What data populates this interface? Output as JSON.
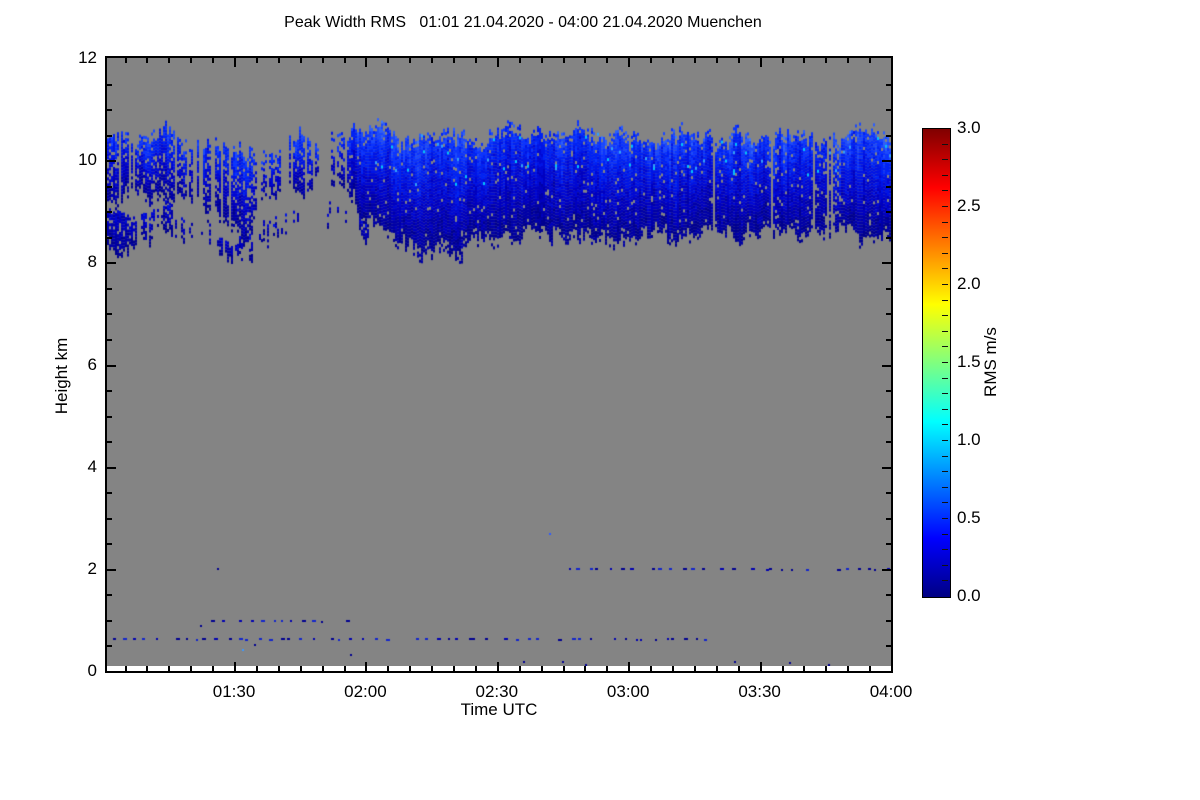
{
  "chart_data": {
    "type": "heatmap",
    "title": "Peak Width RMS   01:01 21.04.2020 - 04:00 21.04.2020 Muenchen",
    "xlabel": "Time UTC",
    "ylabel": "Height km",
    "x_axis": {
      "start": "01:01",
      "end": "04:00",
      "total_minutes": 179,
      "major_ticks": [
        {
          "minute": 29,
          "label": "01:30"
        },
        {
          "minute": 59,
          "label": "02:00"
        },
        {
          "minute": 89,
          "label": "02:30"
        },
        {
          "minute": 119,
          "label": "03:00"
        },
        {
          "minute": 149,
          "label": "03:30"
        },
        {
          "minute": 179,
          "label": "04:00"
        }
      ],
      "minor_step_minutes": 5,
      "first_minor_minute": 4
    },
    "y_axis": {
      "min": 0,
      "max": 12,
      "major_ticks": [
        0,
        2,
        4,
        6,
        8,
        10,
        12
      ],
      "minor_step": 0.5
    },
    "colorbar": {
      "label": "RMS m/s",
      "min": 0.0,
      "max": 3.0,
      "tick_labels": [
        "0.0",
        "0.5",
        "1.0",
        "1.5",
        "2.0",
        "2.5",
        "3.0"
      ],
      "tick_step": 0.5,
      "minor_tick_step": 0.1,
      "colormap": "jet",
      "gradient_stops": [
        [
          0.0,
          "#000083"
        ],
        [
          0.125,
          "#0000FF"
        ],
        [
          0.375,
          "#00FFFF"
        ],
        [
          0.625,
          "#FFFF00"
        ],
        [
          0.875,
          "#FF0000"
        ],
        [
          1.0,
          "#800000"
        ]
      ]
    },
    "nodata_color": "#848484",
    "cloud_layer": {
      "description": "cirrus-like cloud band of low RMS (~0.1-0.6 m/s) between ~8.1 and ~10.75 km; patchy before ~01:55, dense and continuous after",
      "x_step": 0.025,
      "main_band": [
        [
          10.55,
          9.1,
          0.92
        ],
        [
          10.35,
          9.35,
          0.75
        ],
        [
          10.55,
          9.3,
          0.85
        ],
        [
          10.65,
          9.15,
          0.9
        ],
        [
          10.4,
          9.35,
          0.6
        ],
        [
          10.4,
          8.95,
          0.7
        ],
        [
          10.5,
          8.75,
          0.85
        ],
        [
          10.3,
          8.45,
          0.75
        ],
        [
          10.2,
          9.3,
          0.45
        ],
        [
          10.35,
          9.45,
          0.55
        ],
        [
          10.6,
          9.4,
          0.85
        ],
        [
          10.4,
          9.7,
          0.4
        ],
        [
          10.6,
          9.6,
          0.65
        ],
        [
          10.7,
          8.95,
          0.95
        ],
        [
          10.75,
          8.55,
          1.0
        ],
        [
          10.45,
          8.35,
          1.0
        ],
        [
          10.55,
          8.1,
          1.0
        ],
        [
          10.65,
          8.25,
          1.0
        ],
        [
          10.5,
          8.2,
          1.0
        ],
        [
          10.4,
          8.45,
          1.0
        ],
        [
          10.7,
          8.5,
          1.0
        ],
        [
          10.5,
          8.45,
          1.0
        ],
        [
          10.6,
          8.55,
          1.0
        ],
        [
          10.5,
          8.6,
          1.0
        ],
        [
          10.75,
          8.5,
          1.0
        ],
        [
          10.5,
          8.45,
          1.0
        ],
        [
          10.55,
          8.35,
          1.0
        ],
        [
          10.5,
          8.35,
          1.0
        ],
        [
          10.35,
          8.5,
          1.0
        ],
        [
          10.6,
          8.45,
          1.0
        ],
        [
          10.5,
          8.55,
          0.95
        ],
        [
          10.3,
          8.6,
          0.85
        ],
        [
          10.6,
          8.5,
          1.0
        ],
        [
          10.55,
          8.45,
          0.95
        ],
        [
          10.4,
          8.6,
          0.7
        ],
        [
          10.55,
          8.5,
          0.95
        ],
        [
          10.5,
          8.6,
          0.85
        ],
        [
          10.45,
          8.65,
          0.55
        ],
        [
          10.7,
          8.45,
          1.0
        ],
        [
          10.65,
          8.45,
          1.0
        ],
        [
          10.55,
          8.45,
          1.0
        ]
      ],
      "lower_band": [
        [
          9.05,
          8.3,
          0.9
        ],
        [
          8.8,
          8.15,
          0.85
        ],
        [
          9.05,
          8.45,
          0.55
        ],
        [
          9.15,
          8.6,
          0.6
        ],
        [
          8.95,
          8.55,
          0.35
        ],
        [
          8.8,
          8.3,
          0.5
        ],
        [
          8.6,
          8.1,
          0.6
        ],
        [
          8.55,
          8.05,
          0.5
        ],
        [
          8.85,
          8.45,
          0.35
        ],
        [
          8.95,
          8.65,
          0.25
        ],
        [
          9.15,
          8.8,
          0.25
        ],
        [
          9.0,
          8.85,
          0.1
        ],
        [
          9.25,
          8.9,
          0.3
        ],
        [
          8.95,
          8.6,
          0.55
        ],
        [
          8.6,
          8.5,
          0.0
        ]
      ],
      "shades": [
        "#000090",
        "#0000A8",
        "#0000C0",
        "#0008D4",
        "#0014E6",
        "#0022F4",
        "#0B33FF",
        "#1A48FF",
        "#2B5EFF",
        "#3D78FF"
      ],
      "flecks": [
        "#2FA0FF",
        "#00C3FF"
      ]
    },
    "dot_rows": [
      {
        "height_km": 0.64,
        "x_from": 0.0,
        "x_to": 0.77,
        "count": 58
      },
      {
        "height_km": 1.0,
        "x_from": 0.11,
        "x_to": 0.31,
        "count": 15
      },
      {
        "height_km": 2.02,
        "x_from": 0.58,
        "x_to": 1.0,
        "count": 32
      }
    ],
    "dash_colors": [
      "#000090",
      "#0000B0",
      "#1224CC"
    ],
    "specks": [
      {
        "x": 0.14,
        "h": 2.02
      },
      {
        "x": 0.564,
        "h": 2.7,
        "c": "#2E5BFF"
      },
      {
        "x": 0.118,
        "h": 0.91
      },
      {
        "x": 0.172,
        "h": 0.43,
        "c": "#3D9AFF"
      },
      {
        "x": 0.188,
        "h": 0.53
      },
      {
        "x": 0.31,
        "h": 0.33
      },
      {
        "x": 0.53,
        "h": 0.19
      },
      {
        "x": 0.58,
        "h": 0.19
      },
      {
        "x": 0.61,
        "h": 0.14
      },
      {
        "x": 0.8,
        "h": 0.19
      },
      {
        "x": 0.87,
        "h": 0.17
      },
      {
        "x": 0.92,
        "h": 0.14
      }
    ],
    "seed": 20200421
  }
}
